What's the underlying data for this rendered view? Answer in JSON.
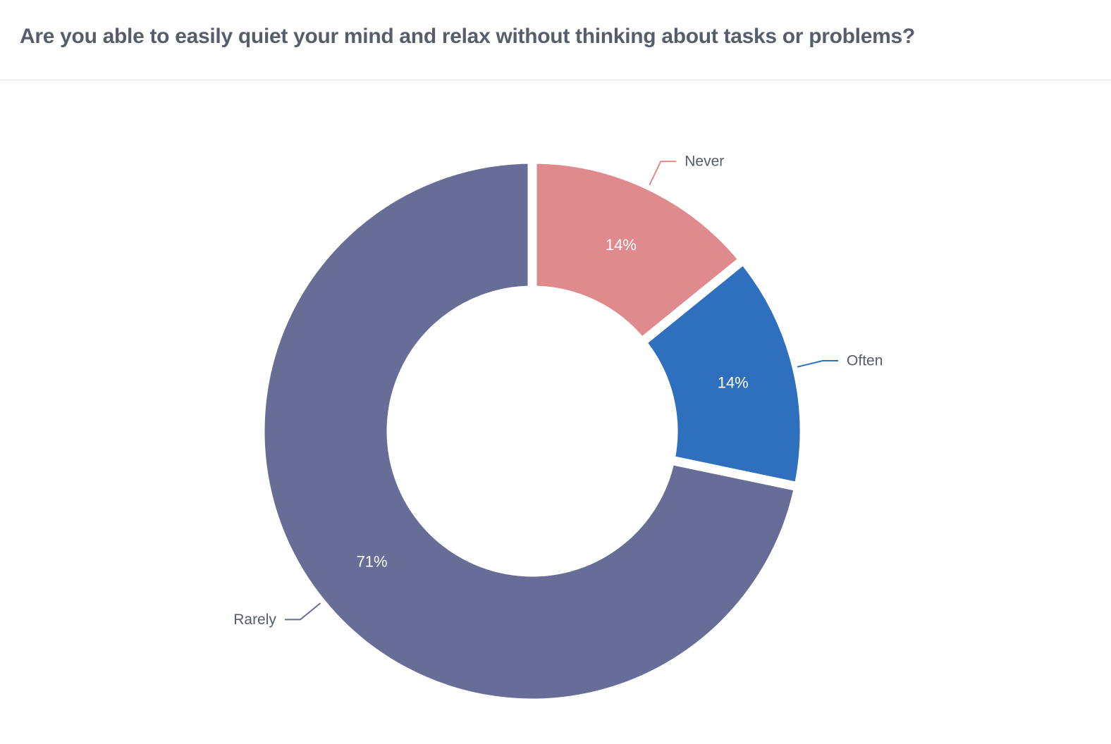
{
  "header": {
    "title": "Are you able to easily quiet your mind and relax without thinking about tasks or problems?"
  },
  "chart_data": {
    "type": "pie",
    "subtype": "donut",
    "title": "Are you able to easily quiet your mind and relax without thinking about tasks or problems?",
    "legend_position": "callout-labels",
    "grid": false,
    "donut_hole_ratio": 0.54,
    "start_angle_deg": 0,
    "direction": "clockwise",
    "segments": [
      {
        "label": "Never",
        "value": 14,
        "percent_label": "14%",
        "color": "#df8b8d"
      },
      {
        "label": "Often",
        "value": 14,
        "percent_label": "14%",
        "color": "#2f70be"
      },
      {
        "label": "Rarely",
        "value": 71,
        "percent_label": "71%",
        "color": "#676d96"
      }
    ],
    "inside_label_color": "#ffffff",
    "callout_text_color": "#575c6b"
  }
}
